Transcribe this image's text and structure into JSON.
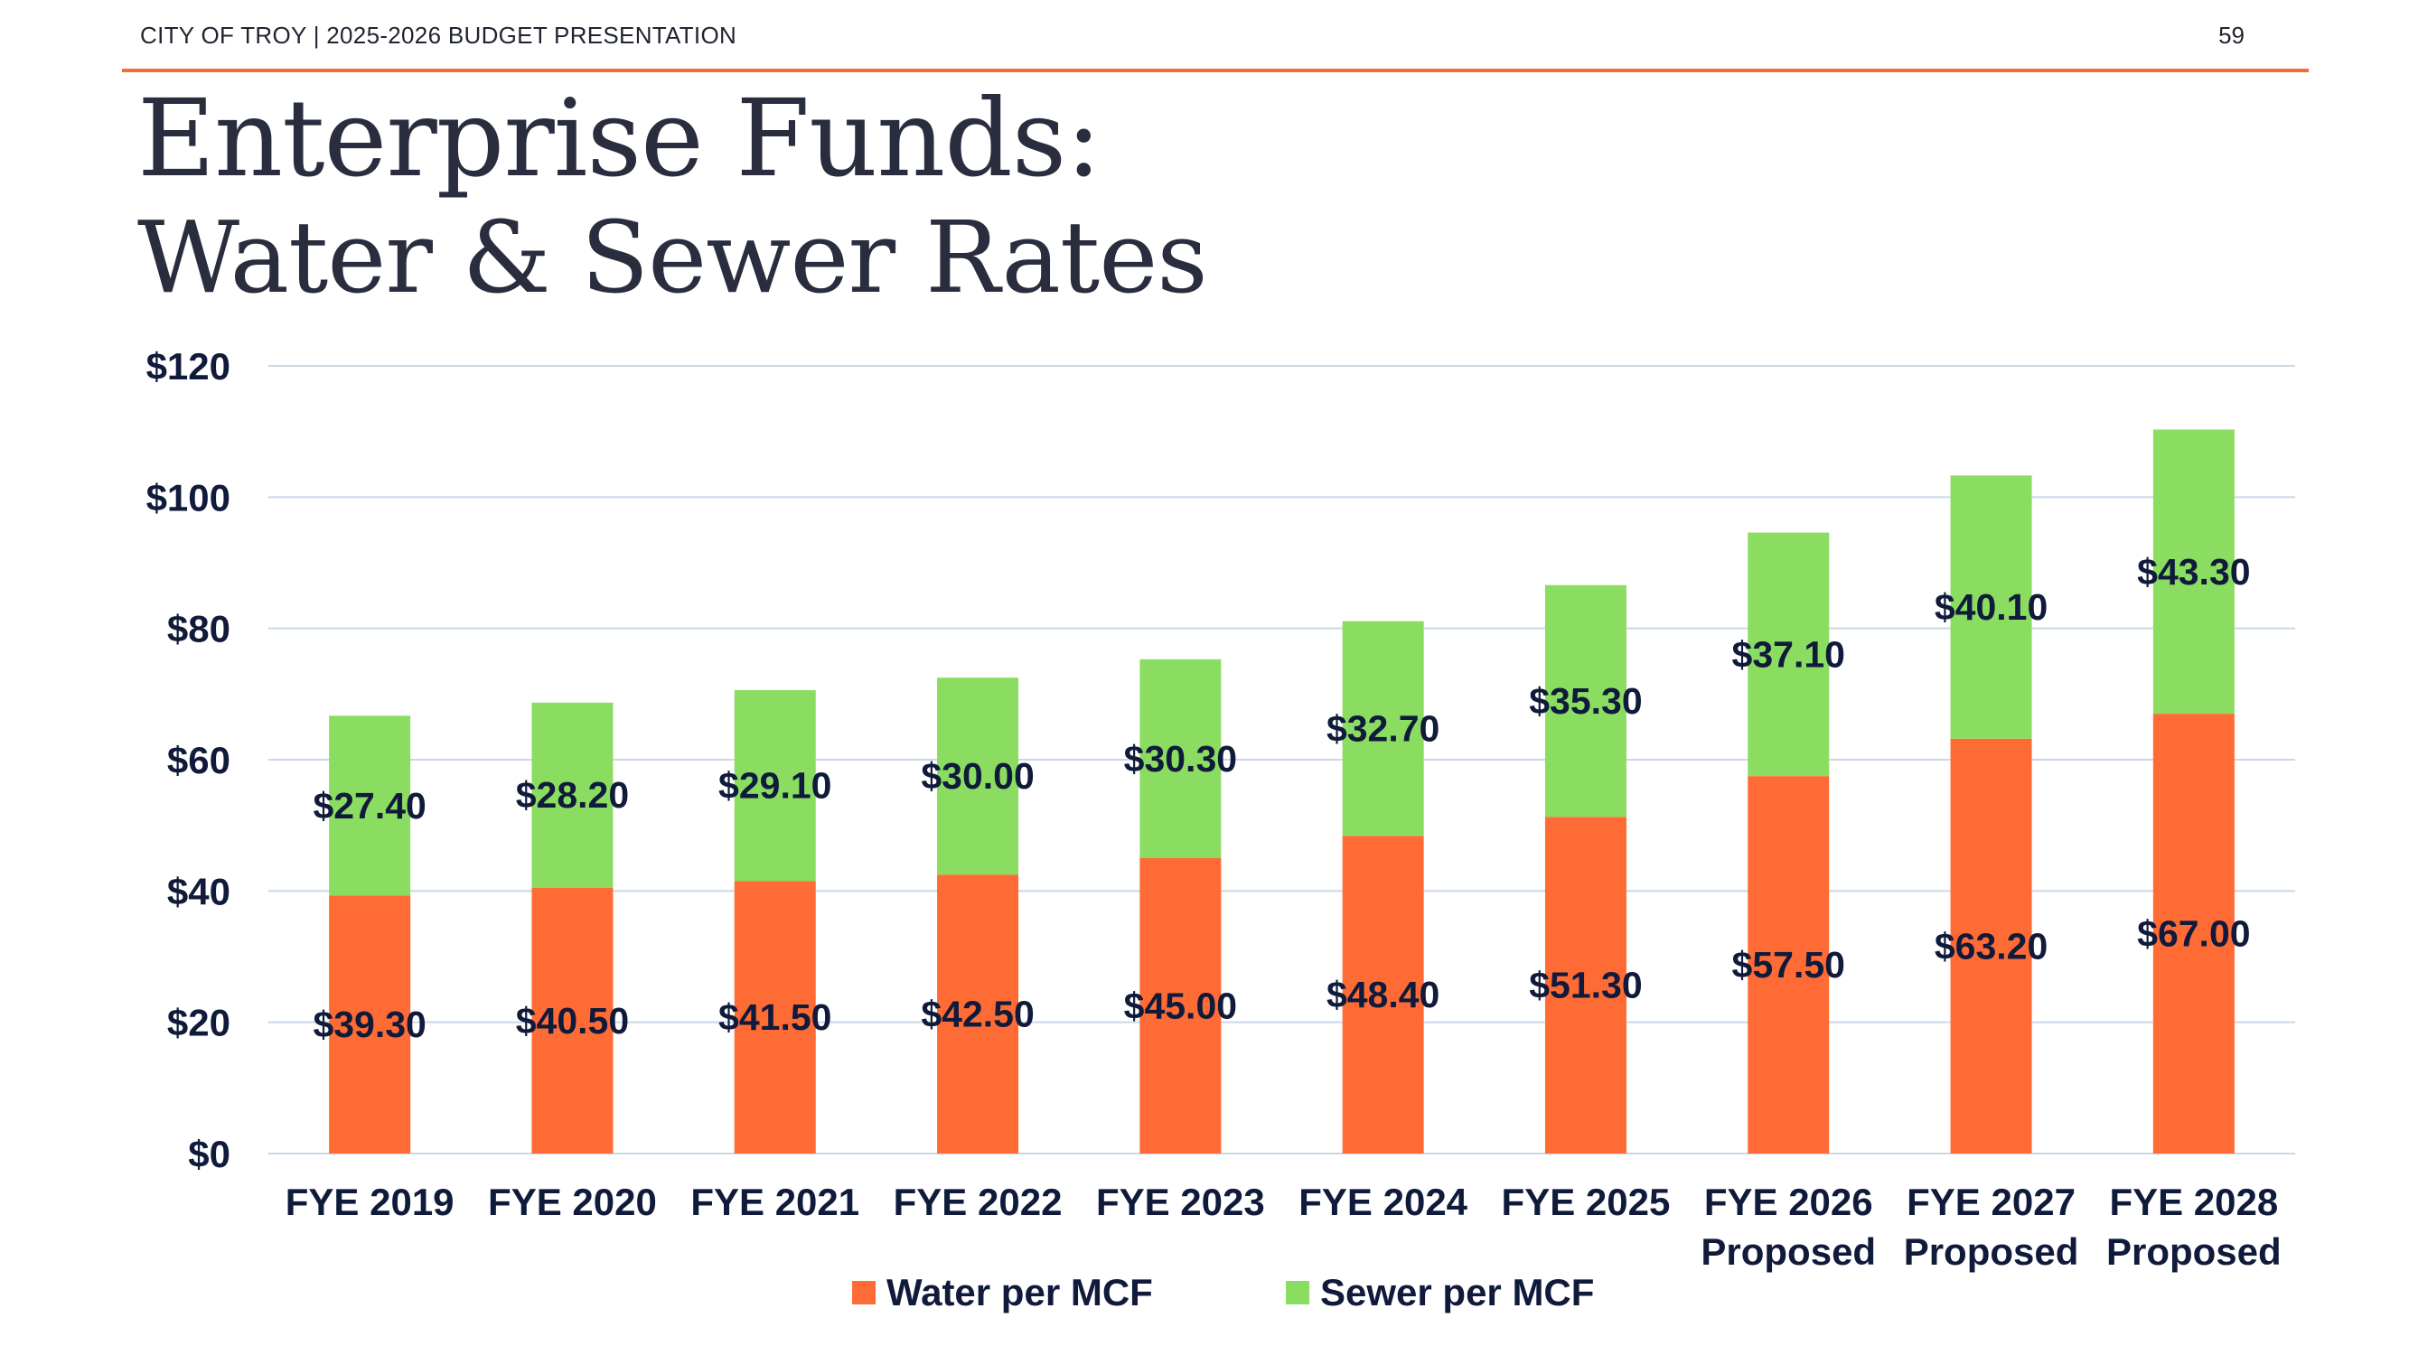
{
  "header": {
    "org": "CITY OF TROY | 2025-2026 BUDGET PRESENTATION",
    "page_number": "59"
  },
  "title": {
    "line1": "Enterprise Funds:",
    "line2": "Water & Sewer Rates"
  },
  "colors": {
    "accent_rule": "#f26b3a",
    "water": "#ff6b35",
    "sewer": "#8bdd62",
    "grid": "#c9d8e6",
    "text": "#101a3a"
  },
  "chart_data": {
    "type": "bar",
    "stacked": true,
    "categories": [
      [
        "FYE 2019"
      ],
      [
        "FYE 2020"
      ],
      [
        "FYE 2021"
      ],
      [
        "FYE 2022"
      ],
      [
        "FYE 2023"
      ],
      [
        "FYE 2024"
      ],
      [
        "FYE 2025"
      ],
      [
        "FYE 2026",
        "Proposed"
      ],
      [
        "FYE 2027",
        "Proposed"
      ],
      [
        "FYE 2028",
        "Proposed"
      ]
    ],
    "series": [
      {
        "name": "Water per MCF",
        "color": "#ff6b35",
        "values": [
          39.3,
          40.5,
          41.5,
          42.5,
          45.0,
          48.4,
          51.3,
          57.5,
          63.2,
          67.0
        ],
        "labels": [
          "$39.30",
          "$40.50",
          "$41.50",
          "$42.50",
          "$45.00",
          "$48.40",
          "$51.30",
          "$57.50",
          "$63.20",
          "$67.00"
        ]
      },
      {
        "name": "Sewer per MCF",
        "color": "#8bdd62",
        "values": [
          27.4,
          28.2,
          29.1,
          30.0,
          30.3,
          32.7,
          35.3,
          37.1,
          40.1,
          43.3
        ],
        "labels": [
          "$27.40",
          "$28.20",
          "$29.10",
          "$30.00",
          "$30.30",
          "$32.70",
          "$35.30",
          "$37.10",
          "$40.10",
          "$43.30"
        ]
      }
    ],
    "ylim": [
      0,
      120
    ],
    "yticks": [
      0,
      20,
      40,
      60,
      80,
      100,
      120
    ],
    "ytick_labels": [
      "$0",
      "$20",
      "$40",
      "$60",
      "$80",
      "$100",
      "$120"
    ],
    "grid": true,
    "legend_position": "bottom-center",
    "title": "",
    "xlabel": "",
    "ylabel": ""
  }
}
